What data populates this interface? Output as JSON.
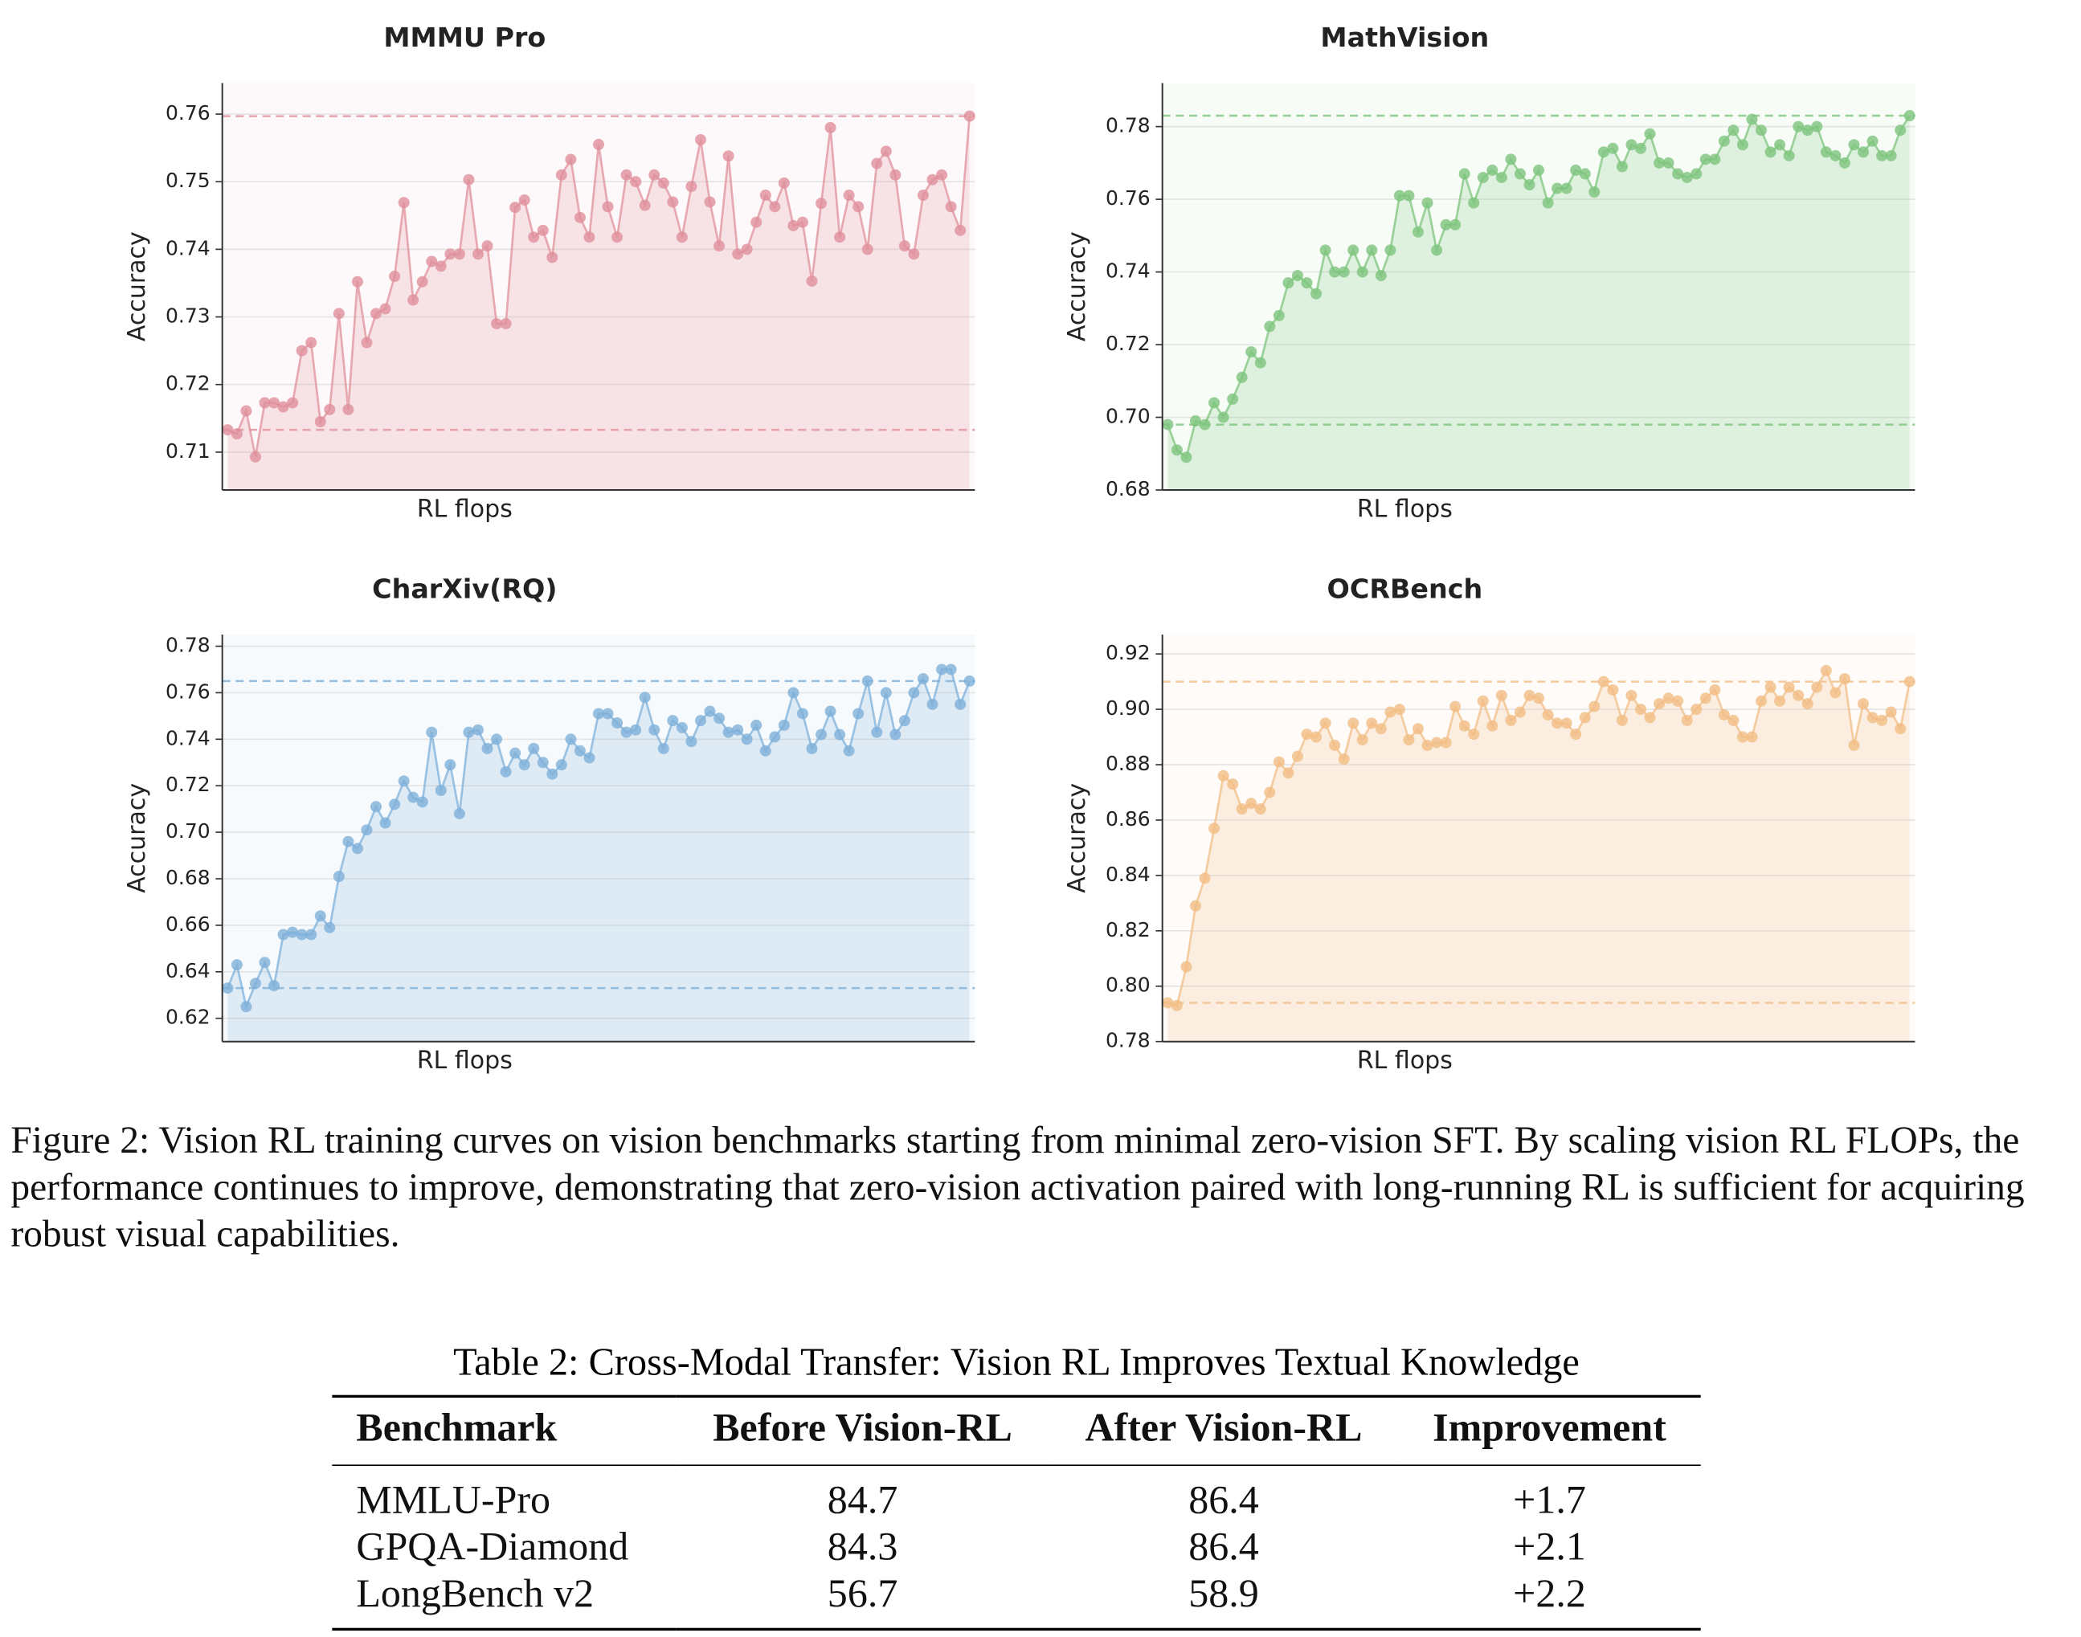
{
  "chart_data": [
    {
      "type": "line",
      "title": "MMMU Pro",
      "x_label": "RL flops",
      "y_label": "Accuracy",
      "color": "#e0909c",
      "ylim": [
        0.7044,
        0.7646
      ],
      "yticks": [
        0.71,
        0.72,
        0.73,
        0.74,
        0.75,
        0.76
      ],
      "reference_lines": [
        0.7133,
        0.7597
      ],
      "values": [
        0.7133,
        0.7127,
        0.7161,
        0.7093,
        0.7173,
        0.7173,
        0.7167,
        0.7173,
        0.725,
        0.7262,
        0.7145,
        0.7163,
        0.7305,
        0.7163,
        0.7352,
        0.7262,
        0.7305,
        0.7312,
        0.736,
        0.7469,
        0.7325,
        0.7352,
        0.7382,
        0.7375,
        0.7393,
        0.7393,
        0.7503,
        0.7393,
        0.7405,
        0.729,
        0.729,
        0.7462,
        0.7473,
        0.7418,
        0.7428,
        0.7388,
        0.751,
        0.7533,
        0.7447,
        0.7418,
        0.7555,
        0.7463,
        0.7418,
        0.751,
        0.75,
        0.7465,
        0.751,
        0.7498,
        0.747,
        0.7418,
        0.7493,
        0.7562,
        0.747,
        0.7405,
        0.7538,
        0.7393,
        0.74,
        0.744,
        0.748,
        0.7463,
        0.7498,
        0.7435,
        0.744,
        0.7353,
        0.7468,
        0.758,
        0.7418,
        0.748,
        0.7463,
        0.74,
        0.7527,
        0.7545,
        0.751,
        0.7405,
        0.7393,
        0.748,
        0.7503,
        0.751,
        0.7463,
        0.7428,
        0.7597
      ]
    },
    {
      "type": "line",
      "title": "MathVision",
      "x_label": "RL flops",
      "y_label": "Accuracy",
      "color": "#7dc47d",
      "ylim": [
        0.68,
        0.792
      ],
      "yticks": [
        0.68,
        {
          "value": 0.7,
          "label": "0.70"
        },
        0.72,
        0.74,
        0.76,
        0.78
      ],
      "reference_lines": [
        0.698,
        0.783
      ],
      "values": [
        0.698,
        0.691,
        0.689,
        0.699,
        0.698,
        0.704,
        0.7,
        0.705,
        0.711,
        0.718,
        0.715,
        0.725,
        0.728,
        0.737,
        0.739,
        0.737,
        0.734,
        0.746,
        0.74,
        0.74,
        0.746,
        0.74,
        0.746,
        0.739,
        0.746,
        0.761,
        0.761,
        0.751,
        0.759,
        0.746,
        0.753,
        0.753,
        0.767,
        0.759,
        0.766,
        0.768,
        0.766,
        0.771,
        0.767,
        0.764,
        0.768,
        0.759,
        0.763,
        0.763,
        0.768,
        0.767,
        0.762,
        0.773,
        0.774,
        0.769,
        0.775,
        0.774,
        0.778,
        0.77,
        0.77,
        0.767,
        0.766,
        0.767,
        0.771,
        0.771,
        0.776,
        0.779,
        0.775,
        0.782,
        0.779,
        0.773,
        0.775,
        0.772,
        0.78,
        0.779,
        0.78,
        0.773,
        0.772,
        0.77,
        0.775,
        0.773,
        0.776,
        0.772,
        0.772,
        0.779,
        0.783
      ]
    },
    {
      "type": "line",
      "title": "CharXiv(RQ)",
      "x_label": "RL flops",
      "y_label": "Accuracy",
      "color": "#7eb0d9",
      "ylim": [
        0.61,
        0.785
      ],
      "yticks": [
        0.62,
        0.64,
        0.66,
        0.68,
        {
          "value": 0.7,
          "label": "0.70"
        },
        0.72,
        0.74,
        0.76,
        0.78
      ],
      "reference_lines": [
        0.633,
        0.765
      ],
      "values": [
        0.633,
        0.643,
        0.625,
        0.635,
        0.644,
        0.634,
        0.656,
        0.657,
        0.656,
        0.656,
        0.664,
        0.659,
        0.681,
        0.696,
        0.693,
        0.701,
        0.711,
        0.704,
        0.712,
        0.722,
        0.715,
        0.713,
        0.743,
        0.718,
        0.729,
        0.708,
        0.743,
        0.744,
        0.736,
        0.74,
        0.726,
        0.734,
        0.729,
        0.736,
        0.73,
        0.725,
        0.729,
        0.74,
        0.735,
        0.732,
        0.751,
        0.751,
        0.747,
        0.743,
        0.744,
        0.758,
        0.744,
        0.736,
        0.748,
        0.745,
        0.739,
        0.748,
        0.752,
        0.749,
        0.743,
        0.744,
        0.74,
        0.746,
        0.735,
        0.741,
        0.746,
        0.76,
        0.751,
        0.736,
        0.742,
        0.752,
        0.742,
        0.735,
        0.751,
        0.765,
        0.743,
        0.76,
        0.742,
        0.748,
        0.76,
        0.766,
        0.755,
        0.77,
        0.77,
        0.755,
        0.765
      ]
    },
    {
      "type": "line",
      "title": "OCRBench",
      "x_label": "RL flops",
      "y_label": "Accuracy",
      "color": "#f2bd85",
      "ylim": [
        0.78,
        0.927
      ],
      "yticks": [
        0.78,
        {
          "value": 0.8,
          "label": "0.80"
        },
        0.82,
        0.84,
        0.86,
        0.88,
        {
          "value": 0.9,
          "label": "0.90"
        },
        0.92
      ],
      "reference_lines": [
        0.794,
        0.91
      ],
      "values": [
        0.794,
        0.793,
        0.807,
        0.829,
        0.839,
        0.857,
        0.876,
        0.873,
        0.864,
        0.866,
        0.864,
        0.87,
        0.881,
        0.877,
        0.883,
        0.891,
        0.89,
        0.895,
        0.887,
        0.882,
        0.895,
        0.889,
        0.895,
        0.893,
        0.899,
        0.9,
        0.889,
        0.893,
        0.887,
        0.888,
        0.888,
        0.901,
        0.894,
        0.891,
        0.903,
        0.894,
        0.905,
        0.896,
        0.899,
        0.905,
        0.904,
        0.898,
        0.895,
        0.895,
        0.891,
        0.897,
        0.901,
        0.91,
        0.907,
        0.896,
        0.905,
        0.9,
        0.897,
        0.902,
        0.904,
        0.903,
        0.896,
        0.9,
        0.904,
        0.907,
        0.898,
        0.896,
        0.89,
        0.89,
        0.903,
        0.908,
        0.903,
        0.908,
        0.905,
        0.902,
        0.908,
        0.914,
        0.906,
        0.911,
        0.887,
        0.902,
        0.897,
        0.896,
        0.899,
        0.893,
        0.91
      ]
    }
  ],
  "caption": "Figure 2: Vision RL training curves on vision benchmarks starting from minimal zero-vision SFT. By scaling vision RL FLOPs, the performance continues to improve, demonstrating that zero-vision activation paired with long-running RL is sufficient for acquiring robust visual capabilities.",
  "table": {
    "caption": "Table 2: Cross-Modal Transfer: Vision RL Improves Textual Knowledge",
    "columns": [
      "Benchmark",
      "Before Vision-RL",
      "After Vision-RL",
      "Improvement"
    ],
    "rows": [
      [
        "MMLU-Pro",
        "84.7",
        "86.4",
        "+1.7"
      ],
      [
        "GPQA-Diamond",
        "84.3",
        "86.4",
        "+2.1"
      ],
      [
        "LongBench v2",
        "56.7",
        "58.9",
        "+2.2"
      ]
    ]
  }
}
